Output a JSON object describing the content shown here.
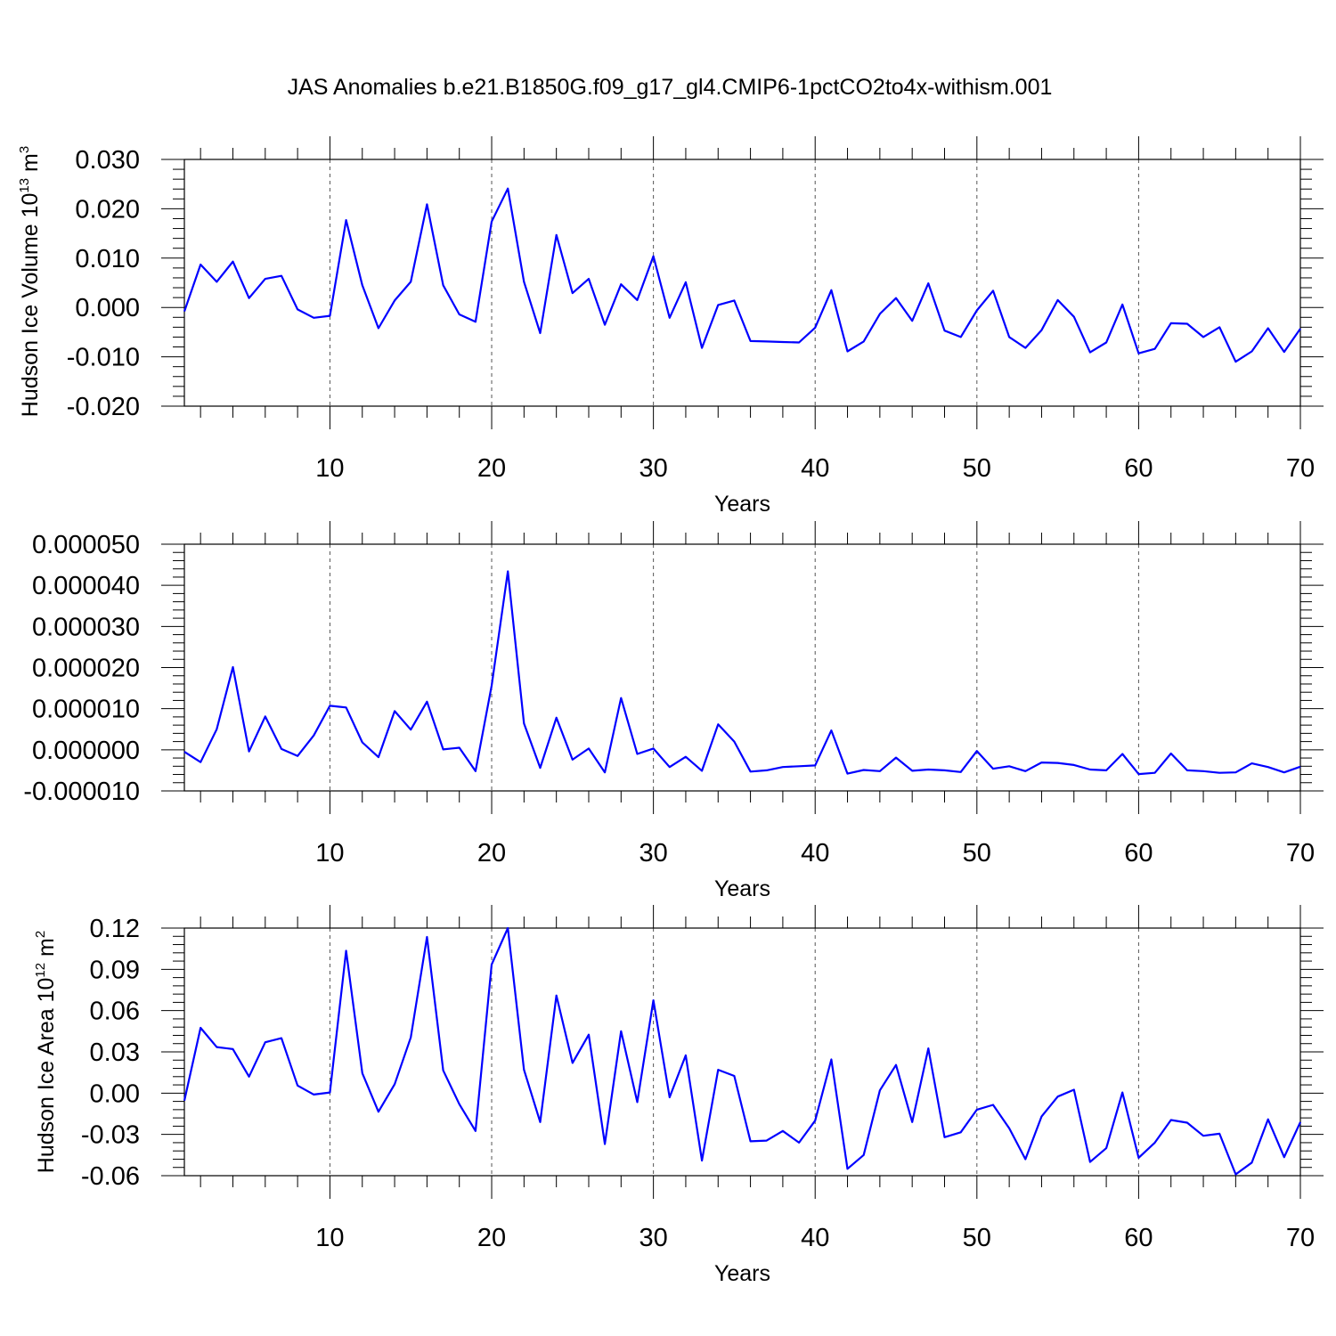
{
  "figure": {
    "title": "JAS Anomalies b.e21.B1850G.f09_g17_gl4.CMIP6-1pctCO2to4x-withism.001"
  },
  "line_color": "#0000ff",
  "chart_data": [
    {
      "type": "line",
      "title": "JAS Anomalies b.e21.B1850G.f09_g17_gl4.CMIP6-1pctCO2to4x-withism.001",
      "xlabel": "Years",
      "ylabel": {
        "main": "Hudson Ice Volume 10",
        "sup1": "13",
        "unit": " m",
        "sup2": "3"
      },
      "xlim": [
        1,
        70
      ],
      "ylim": [
        -0.02,
        0.03
      ],
      "xticks": [
        10,
        20,
        30,
        40,
        50,
        60,
        70
      ],
      "yticks": [
        "0.030",
        "0.020",
        "0.010",
        "0.000",
        "-0.010",
        "-0.020"
      ],
      "ytick_values": [
        0.03,
        0.02,
        0.01,
        0.0,
        -0.01,
        -0.02
      ],
      "grid": "vertical dashed at major x ticks",
      "x": [
        1,
        2,
        3,
        4,
        5,
        6,
        7,
        8,
        9,
        10,
        11,
        12,
        13,
        14,
        15,
        16,
        17,
        18,
        19,
        20,
        21,
        22,
        23,
        24,
        25,
        26,
        27,
        28,
        29,
        30,
        31,
        32,
        33,
        34,
        35,
        36,
        37,
        38,
        39,
        40,
        41,
        42,
        43,
        44,
        45,
        46,
        47,
        48,
        49,
        50,
        51,
        52,
        53,
        54,
        55,
        56,
        57,
        58,
        59,
        60,
        61,
        62,
        63,
        64,
        65,
        66,
        67,
        68,
        69,
        70
      ],
      "series": [
        {
          "values": [
            -0.0008,
            0.0087,
            0.0052,
            0.0093,
            0.0019,
            0.0058,
            0.0064,
            -0.0004,
            -0.0021,
            -0.0017,
            0.0177,
            0.0045,
            -0.0042,
            0.0014,
            0.0052,
            0.0209,
            0.0045,
            -0.0014,
            -0.0029,
            0.0174,
            0.0241,
            0.0052,
            -0.0052,
            0.0147,
            0.0029,
            0.0058,
            -0.0035,
            0.0047,
            0.0015,
            0.0104,
            -0.0021,
            0.0051,
            -0.0082,
            0.0005,
            0.0014,
            -0.0068,
            -0.0069,
            -0.007,
            -0.0071,
            -0.0041,
            0.0035,
            -0.0089,
            -0.0069,
            -0.0013,
            0.0019,
            -0.0027,
            0.0049,
            -0.0047,
            -0.006,
            -0.0006,
            0.0034,
            -0.006,
            -0.0082,
            -0.0046,
            0.0015,
            -0.0019,
            -0.0091,
            -0.0071,
            0.0006,
            -0.0093,
            -0.0084,
            -0.0032,
            -0.0033,
            -0.006,
            -0.004,
            -0.011,
            -0.0089,
            -0.0042,
            -0.009,
            -0.0043
          ]
        }
      ]
    },
    {
      "type": "line",
      "xlabel": "Years",
      "ylabel": "",
      "xlim": [
        1,
        70
      ],
      "ylim": [
        -1e-05,
        5e-05
      ],
      "xticks": [
        10,
        20,
        30,
        40,
        50,
        60,
        70
      ],
      "yticks": [
        "0.000050",
        "0.000040",
        "0.000030",
        "0.000020",
        "0.000010",
        "0.000000",
        "-0.000010"
      ],
      "ytick_values": [
        5e-05,
        4e-05,
        3e-05,
        2e-05,
        1e-05,
        0.0,
        -1e-05
      ],
      "grid": "vertical dashed at major x ticks",
      "x": [
        1,
        2,
        3,
        4,
        5,
        6,
        7,
        8,
        9,
        10,
        11,
        12,
        13,
        14,
        15,
        16,
        17,
        18,
        19,
        20,
        21,
        22,
        23,
        24,
        25,
        26,
        27,
        28,
        29,
        30,
        31,
        32,
        33,
        34,
        35,
        36,
        37,
        38,
        39,
        40,
        41,
        42,
        43,
        44,
        45,
        46,
        47,
        48,
        49,
        50,
        51,
        52,
        53,
        54,
        55,
        56,
        57,
        58,
        59,
        60,
        61,
        62,
        63,
        64,
        65,
        66,
        67,
        68,
        69,
        70
      ],
      "series": [
        {
          "values": [
            -5e-07,
            -3e-06,
            5e-06,
            2.01e-05,
            -4e-07,
            8.1e-06,
            2e-07,
            -1.5e-06,
            3.5e-06,
            1.07e-05,
            1.03e-05,
            1.8e-06,
            -1.8e-06,
            9.4e-06,
            4.9e-06,
            1.17e-05,
            1e-07,
            5e-07,
            -5.2e-06,
            1.56e-05,
            4.34e-05,
            6.4e-06,
            -4.4e-06,
            7.8e-06,
            -2.4e-06,
            3e-07,
            -5.5e-06,
            1.26e-05,
            -1e-06,
            3e-07,
            -4.2e-06,
            -1.7e-06,
            -5.1e-06,
            6.2e-06,
            2e-06,
            -5.3e-06,
            -5e-06,
            -4.2e-06,
            -4e-06,
            -3.8e-06,
            4.7e-06,
            -5.8e-06,
            -4.9e-06,
            -5.2e-06,
            -1.9e-06,
            -5.1e-06,
            -4.8e-06,
            -5e-06,
            -5.4e-06,
            -3e-07,
            -4.6e-06,
            -4e-06,
            -5.2e-06,
            -3.1e-06,
            -3.2e-06,
            -3.7e-06,
            -4.8e-06,
            -5e-06,
            -1e-06,
            -5.9e-06,
            -5.6e-06,
            -9e-07,
            -5e-06,
            -5.2e-06,
            -5.6e-06,
            -5.5e-06,
            -3.3e-06,
            -4.2e-06,
            -5.5e-06,
            -4.1e-06
          ]
        }
      ]
    },
    {
      "type": "line",
      "xlabel": "Years",
      "ylabel": {
        "main": "Hudson Ice Area 10",
        "sup1": "12",
        "unit": " m",
        "sup2": "2"
      },
      "xlim": [
        1,
        70
      ],
      "ylim": [
        -0.06,
        0.12
      ],
      "xticks": [
        10,
        20,
        30,
        40,
        50,
        60,
        70
      ],
      "yticks": [
        "0.12",
        "0.09",
        "0.06",
        "0.03",
        "0.00",
        "-0.03",
        "-0.06"
      ],
      "ytick_values": [
        0.12,
        0.09,
        0.06,
        0.03,
        0.0,
        -0.03,
        -0.06
      ],
      "grid": "vertical dashed at major x ticks",
      "x": [
        1,
        2,
        3,
        4,
        5,
        6,
        7,
        8,
        9,
        10,
        11,
        12,
        13,
        14,
        15,
        16,
        17,
        18,
        19,
        20,
        21,
        22,
        23,
        24,
        25,
        26,
        27,
        28,
        29,
        30,
        31,
        32,
        33,
        34,
        35,
        36,
        37,
        38,
        39,
        40,
        41,
        42,
        43,
        44,
        45,
        46,
        47,
        48,
        49,
        50,
        51,
        52,
        53,
        54,
        55,
        56,
        57,
        58,
        59,
        60,
        61,
        62,
        63,
        64,
        65,
        66,
        67,
        68,
        69,
        70
      ],
      "series": [
        {
          "values": [
            -0.0055,
            0.0475,
            0.0335,
            0.032,
            0.012,
            0.037,
            0.04,
            0.0055,
            -0.001,
            0.0005,
            0.1035,
            0.0145,
            -0.0135,
            0.0065,
            0.0405,
            0.1135,
            0.0165,
            -0.008,
            -0.0275,
            0.0935,
            0.12,
            0.017,
            -0.021,
            0.071,
            0.022,
            0.0425,
            -0.037,
            0.045,
            -0.0065,
            0.0675,
            -0.003,
            0.0275,
            -0.049,
            0.017,
            0.0125,
            -0.035,
            -0.0345,
            -0.0275,
            -0.036,
            -0.02,
            0.0245,
            -0.055,
            -0.045,
            0.002,
            0.0205,
            -0.021,
            0.0325,
            -0.032,
            -0.0285,
            -0.012,
            -0.0085,
            -0.0255,
            -0.048,
            -0.017,
            -0.0025,
            0.0025,
            -0.05,
            -0.04,
            0.0005,
            -0.047,
            -0.036,
            -0.0195,
            -0.0215,
            -0.031,
            -0.0295,
            -0.059,
            -0.0505,
            -0.019,
            -0.0465,
            -0.021
          ]
        }
      ]
    }
  ]
}
